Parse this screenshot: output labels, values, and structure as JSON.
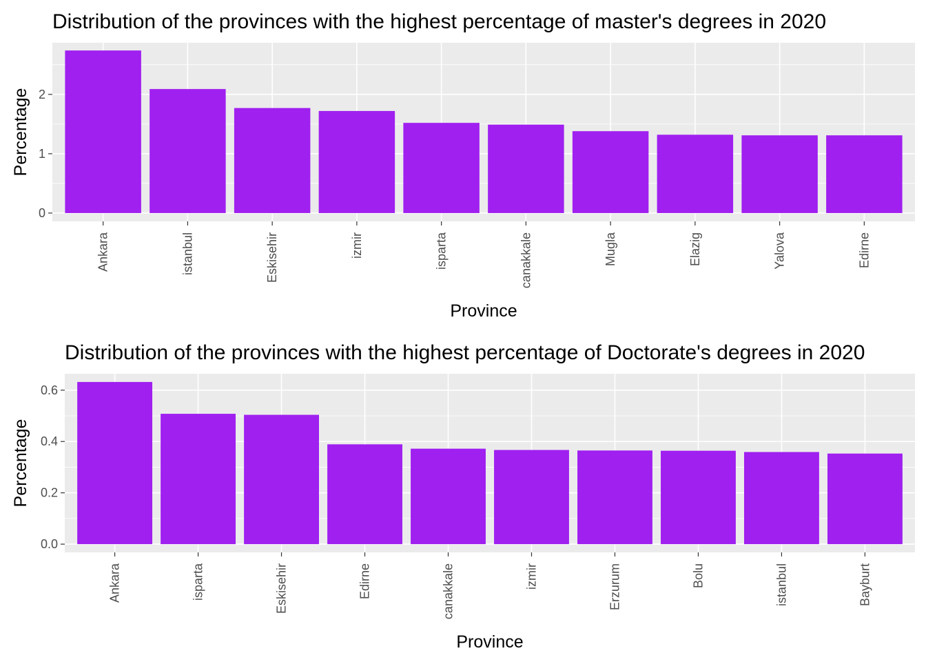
{
  "chart_data": [
    {
      "type": "bar",
      "title": "Distribution of the provinces with the highest percentage of master's degrees in 2020",
      "xlabel": "Province",
      "ylabel": "Percentage",
      "categories": [
        "Ankara",
        "istanbul",
        "Eskisehir",
        "izmir",
        "isparta",
        "canakkale",
        "Mugla",
        "Elazig",
        "Yalova",
        "Edirne"
      ],
      "values": [
        2.74,
        2.09,
        1.77,
        1.72,
        1.52,
        1.49,
        1.38,
        1.32,
        1.31,
        1.31
      ],
      "ylim": [
        -0.14,
        2.87
      ],
      "yticks": [
        0,
        1,
        2
      ],
      "ytick_labels": [
        "0",
        "1",
        "2"
      ],
      "bar_color": "#a020f0",
      "panel_color": "#ebebeb",
      "grid": true,
      "legend": "none"
    },
    {
      "type": "bar",
      "title": "Distribution of the provinces with the highest percentage of Doctorate's degrees in 2020",
      "xlabel": "Province",
      "ylabel": "Percentage",
      "categories": [
        "Ankara",
        "isparta",
        "Eskisehir",
        "Edirne",
        "canakkale",
        "izmir",
        "Erzurum",
        "Bolu",
        "istanbul",
        "Bayburt"
      ],
      "values": [
        0.632,
        0.508,
        0.504,
        0.389,
        0.372,
        0.367,
        0.365,
        0.364,
        0.359,
        0.353
      ],
      "ylim": [
        -0.032,
        0.664
      ],
      "yticks": [
        0,
        0.2,
        0.4,
        0.6
      ],
      "ytick_labels": [
        "0.0",
        "0.2",
        "0.4",
        "0.6"
      ],
      "bar_color": "#a020f0",
      "panel_color": "#ebebeb",
      "grid": true,
      "legend": "none"
    }
  ]
}
